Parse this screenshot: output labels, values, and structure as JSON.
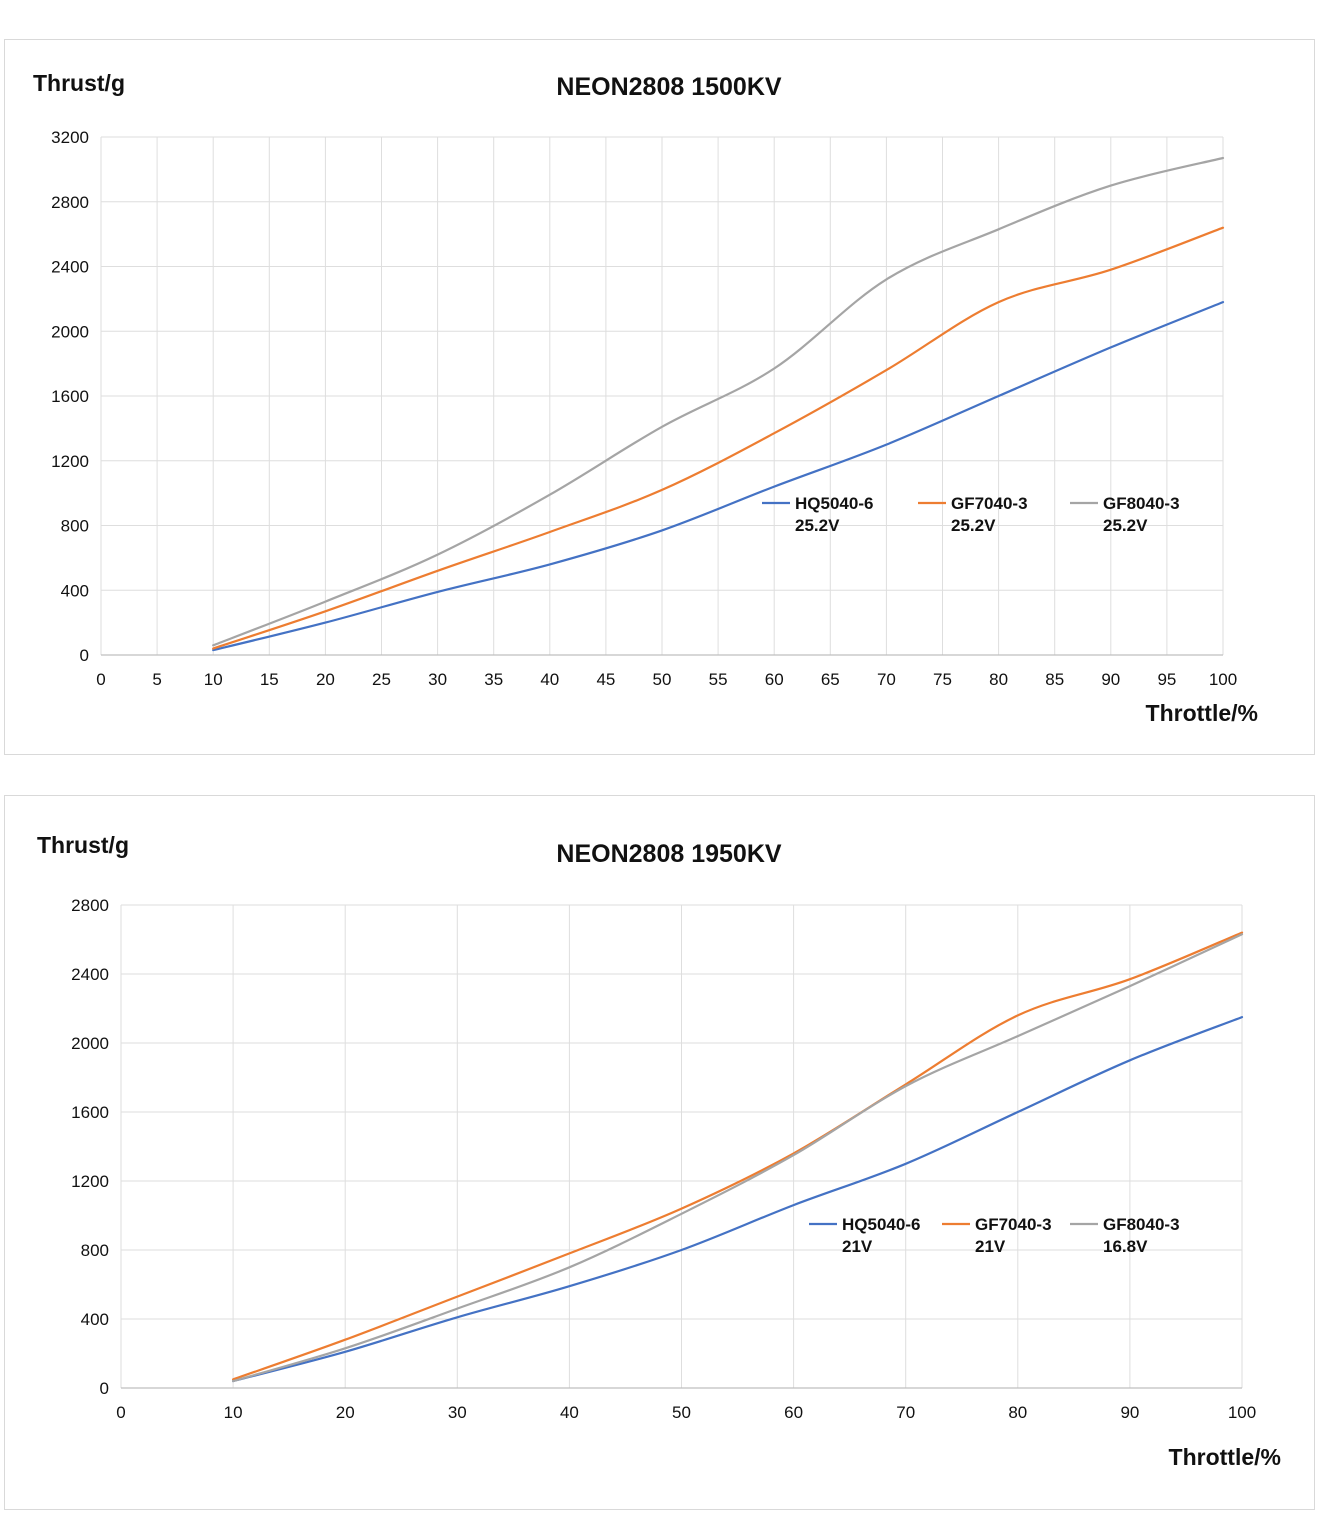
{
  "colors": {
    "blue": "#4472c4",
    "orange": "#ed7d31",
    "gray": "#a5a5a5",
    "grid": "#dedede",
    "axis": "#bfbfbf"
  },
  "chart_data": [
    {
      "type": "line",
      "title": "NEON2808 1500KV",
      "ylabel": "Thrust/g",
      "xlabel": "Throttle/%",
      "xlim": [
        0,
        100
      ],
      "ylim": [
        0,
        3200
      ],
      "xticks": [
        "0",
        "5",
        "10",
        "15",
        "20",
        "25",
        "30",
        "35",
        "40",
        "45",
        "50",
        "55",
        "60",
        "65",
        "70",
        "75",
        "80",
        "85",
        "90",
        "95",
        "100"
      ],
      "yticks": [
        "0",
        "400",
        "800",
        "1200",
        "1600",
        "2000",
        "2400",
        "2800",
        "3200"
      ],
      "grid": true,
      "legend_position": "center-right",
      "series": [
        {
          "name": "HQ5040-6",
          "voltage": "25.2V",
          "color": "#4472c4",
          "x": [
            10,
            20,
            30,
            40,
            50,
            60,
            70,
            80,
            90,
            100
          ],
          "y": [
            30,
            200,
            390,
            560,
            770,
            1040,
            1300,
            1600,
            1900,
            2180
          ]
        },
        {
          "name": "GF7040-3",
          "voltage": "25.2V",
          "color": "#ed7d31",
          "x": [
            10,
            20,
            30,
            40,
            50,
            60,
            70,
            80,
            90,
            100
          ],
          "y": [
            40,
            270,
            520,
            760,
            1020,
            1370,
            1760,
            2180,
            2380,
            2640
          ]
        },
        {
          "name": "GF8040-3",
          "voltage": "25.2V",
          "color": "#a5a5a5",
          "x": [
            10,
            20,
            30,
            40,
            50,
            60,
            70,
            80,
            90,
            100
          ],
          "y": [
            60,
            330,
            620,
            990,
            1410,
            1770,
            2320,
            2630,
            2900,
            3070
          ]
        }
      ]
    },
    {
      "type": "line",
      "title": "NEON2808 1950KV",
      "ylabel": "Thrust/g",
      "xlabel": "Throttle/%",
      "xlim": [
        0,
        100
      ],
      "ylim": [
        0,
        2800
      ],
      "xticks": [
        "0",
        "10",
        "20",
        "30",
        "40",
        "50",
        "60",
        "70",
        "80",
        "90",
        "100"
      ],
      "yticks": [
        "0",
        "400",
        "800",
        "1200",
        "1600",
        "2000",
        "2400",
        "2800"
      ],
      "grid": true,
      "legend_position": "center-right",
      "series": [
        {
          "name": "HQ5040-6",
          "voltage": "21V",
          "color": "#4472c4",
          "x": [
            10,
            20,
            30,
            40,
            50,
            60,
            70,
            80,
            90,
            100
          ],
          "y": [
            40,
            210,
            410,
            590,
            800,
            1060,
            1300,
            1600,
            1900,
            2150
          ]
        },
        {
          "name": "GF7040-3",
          "voltage": "21V",
          "color": "#ed7d31",
          "x": [
            10,
            20,
            30,
            40,
            50,
            60,
            70,
            80,
            90,
            100
          ],
          "y": [
            50,
            280,
            530,
            780,
            1040,
            1360,
            1760,
            2160,
            2370,
            2640
          ]
        },
        {
          "name": "GF8040-3",
          "voltage": "16.8V",
          "color": "#a5a5a5",
          "x": [
            10,
            20,
            30,
            40,
            50,
            60,
            70,
            80,
            90,
            100
          ],
          "y": [
            40,
            230,
            460,
            700,
            1010,
            1350,
            1750,
            2040,
            2330,
            2630
          ]
        }
      ]
    }
  ]
}
